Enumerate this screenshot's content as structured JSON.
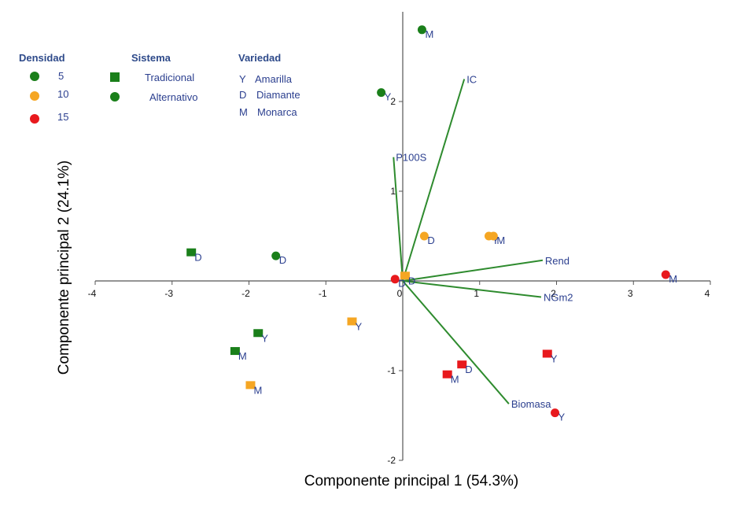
{
  "colors": {
    "density_5": "#1a7f1a",
    "density_10": "#f5a623",
    "density_15": "#e8191d",
    "vector": "#2e8b2e",
    "axis": "#555555",
    "label": "#2b3f8f",
    "legend_head": "#2e4a8a"
  },
  "legend": {
    "densidad": {
      "title": "Densidad",
      "items": [
        {
          "label": "5",
          "color": "#1a7f1a"
        },
        {
          "label": "10",
          "color": "#f5a623"
        },
        {
          "label": "15",
          "color": "#e8191d"
        }
      ]
    },
    "sistema": {
      "title": "Sistema",
      "items": [
        {
          "label": "Tradicional",
          "shape": "square"
        },
        {
          "label": "Alternativo",
          "shape": "circle"
        }
      ]
    },
    "variedad": {
      "title": "Variedad",
      "items": [
        {
          "code": "Y",
          "label": "Amarilla"
        },
        {
          "code": "D",
          "label": "Diamante"
        },
        {
          "code": "M",
          "label": "Monarca"
        }
      ]
    }
  },
  "chart_data": {
    "type": "scatter",
    "subtype": "biplot",
    "xlabel": "Componente principal 1  (54.3%)",
    "ylabel": "Componente principal 2  (24.1%)",
    "xlim": [
      -4,
      4
    ],
    "ylim": [
      -2,
      2.9
    ],
    "xticks": [
      "-4",
      "-3",
      "-2",
      "-1",
      "0",
      "1",
      "2",
      "3",
      "4"
    ],
    "yticks": [
      "-2",
      "-1",
      "1",
      "2"
    ],
    "points": [
      {
        "x": 0.25,
        "y": 2.8,
        "label": "M",
        "density": "5",
        "sistema": "Alternativo"
      },
      {
        "x": -0.28,
        "y": 2.1,
        "label": "Y",
        "density": "5",
        "sistema": "Alternativo"
      },
      {
        "x": -1.65,
        "y": 0.28,
        "label": "D",
        "density": "5",
        "sistema": "Alternativo"
      },
      {
        "x": -2.75,
        "y": 0.31,
        "label": "D",
        "density": "5",
        "sistema": "Tradicional"
      },
      {
        "x": -1.88,
        "y": -0.59,
        "label": "Y",
        "density": "5",
        "sistema": "Tradicional"
      },
      {
        "x": -2.18,
        "y": -0.79,
        "label": "M",
        "density": "5",
        "sistema": "Tradicional"
      },
      {
        "x": 0.28,
        "y": 0.5,
        "label": "D",
        "density": "10",
        "sistema": "Alternativo"
      },
      {
        "x": 1.12,
        "y": 0.5,
        "label": "Y",
        "density": "10",
        "sistema": "Alternativo"
      },
      {
        "x": 1.18,
        "y": 0.5,
        "label": "M",
        "density": "10",
        "sistema": "Alternativo"
      },
      {
        "x": 0.03,
        "y": 0.05,
        "label": "D",
        "density": "10",
        "sistema": "Tradicional"
      },
      {
        "x": -0.66,
        "y": -0.46,
        "label": "Y",
        "density": "10",
        "sistema": "Tradicional"
      },
      {
        "x": -1.98,
        "y": -1.17,
        "label": "M",
        "density": "10",
        "sistema": "Tradicional"
      },
      {
        "x": -0.1,
        "y": 0.02,
        "label": "D",
        "density": "15",
        "sistema": "Alternativo"
      },
      {
        "x": 3.42,
        "y": 0.07,
        "label": "M",
        "density": "15",
        "sistema": "Alternativo"
      },
      {
        "x": 1.98,
        "y": -1.47,
        "label": "Y",
        "density": "15",
        "sistema": "Alternativo"
      },
      {
        "x": 1.88,
        "y": -0.82,
        "label": "Y",
        "density": "15",
        "sistema": "Tradicional"
      },
      {
        "x": 0.77,
        "y": -0.94,
        "label": "D",
        "density": "15",
        "sistema": "Tradicional"
      },
      {
        "x": 0.58,
        "y": -1.05,
        "label": "M",
        "density": "15",
        "sistema": "Tradicional"
      }
    ],
    "vectors": [
      {
        "name": "IC",
        "x": 0.8,
        "y": 2.25
      },
      {
        "name": "P100S",
        "x": -0.12,
        "y": 1.38
      },
      {
        "name": "Rend",
        "x": 1.82,
        "y": 0.23
      },
      {
        "name": "NGm2",
        "x": 1.8,
        "y": -0.18
      },
      {
        "name": "Biomasa",
        "x": 1.38,
        "y": -1.37
      }
    ]
  }
}
